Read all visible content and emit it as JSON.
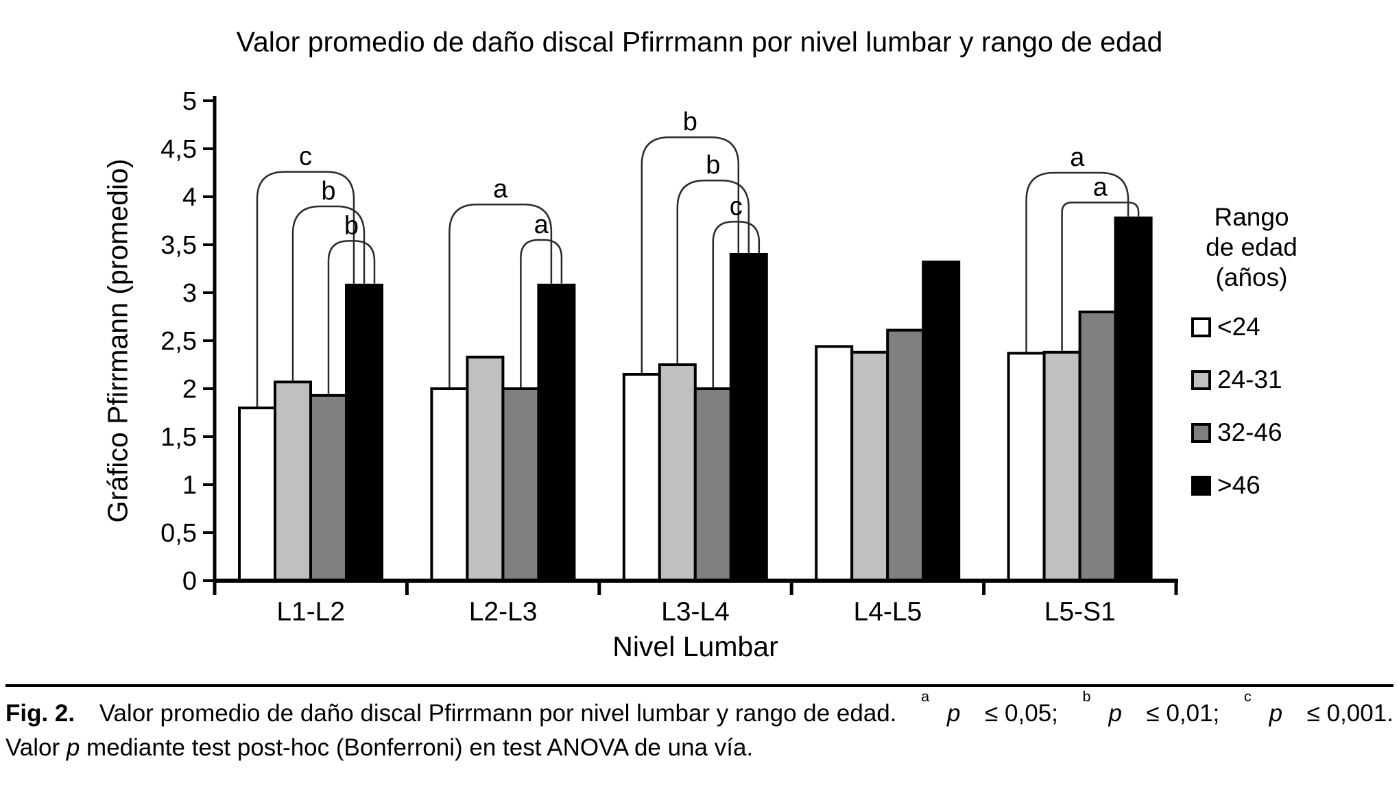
{
  "figure": {
    "caption_line1_plain": "Fig. 2. Valor promedio de daño discal Pfirrmann por nivel lumbar y rango de edad. ap ≤ 0,05; bp ≤ 0,01; cp ≤ 0,001.",
    "caption_line2_plain": "Valor p mediante test post-hoc (Bonferroni) en test ANOVA de una vía.",
    "caption_line1_segments": [
      {
        "t": "Fig. 2.",
        "b": true
      },
      {
        "t": " Valor promedio de daño discal Pfirrmann por nivel lumbar y rango de edad. "
      },
      {
        "t": "a",
        "sup": true
      },
      {
        "t": "p",
        "i": true
      },
      {
        "t": " ≤ 0,05; "
      },
      {
        "t": "b",
        "sup": true
      },
      {
        "t": "p",
        "i": true
      },
      {
        "t": " ≤ 0,01; "
      },
      {
        "t": "c",
        "sup": true
      },
      {
        "t": "p",
        "i": true
      },
      {
        "t": " ≤ 0,001."
      }
    ],
    "caption_line2_segments": [
      {
        "t": "Valor "
      },
      {
        "t": "p",
        "i": true
      },
      {
        "t": " mediante test post-hoc (Bonferroni) en test ANOVA de una vía."
      }
    ]
  },
  "chart_data": {
    "type": "bar",
    "title": "Valor promedio de daño discal Pfirrmann por nivel lumbar y rango de edad",
    "xlabel": "Nivel Lumbar",
    "ylabel": "Gráfico Pfirrmann (promedio)",
    "categories": [
      "L1-L2",
      "L2-L3",
      "L3-L4",
      "L4-L5",
      "L5-S1"
    ],
    "series": [
      {
        "name": "<24",
        "color": "#ffffff",
        "values": [
          1.8,
          2.0,
          2.15,
          2.44,
          2.37
        ]
      },
      {
        "name": "24-31",
        "color": "#c0c0c0",
        "values": [
          2.07,
          2.33,
          2.25,
          2.38,
          2.38
        ]
      },
      {
        "name": "32-46",
        "color": "#7f7f7f",
        "values": [
          1.93,
          2.0,
          2.0,
          2.61,
          2.8
        ]
      },
      {
        "name": ">46",
        "color": "#000000",
        "values": [
          3.08,
          3.08,
          3.4,
          3.32,
          3.78
        ]
      }
    ],
    "ylim": [
      0,
      5
    ],
    "ytick_step": 0.5,
    "ytick_labels": [
      "0",
      "0,5",
      "1",
      "1,5",
      "2",
      "2,5",
      "3",
      "3,5",
      "4",
      "4,5",
      "5"
    ],
    "grid": false,
    "legend_position": "right",
    "legend_title_lines": [
      "Rango",
      "de edad",
      "(años)"
    ],
    "significance_brackets": [
      {
        "group": "L1-L2",
        "from": "<24",
        "to": ">46",
        "label": "c",
        "height": 4.26
      },
      {
        "group": "L1-L2",
        "from": "24-31",
        "to": ">46",
        "label": "b",
        "height": 3.9
      },
      {
        "group": "L1-L2",
        "from": "32-46",
        "to": ">46",
        "label": "b",
        "height": 3.54
      },
      {
        "group": "L2-L3",
        "from": "<24",
        "to": ">46",
        "label": "a",
        "height": 3.92
      },
      {
        "group": "L2-L3",
        "from": "32-46",
        "to": ">46",
        "label": "a",
        "height": 3.55
      },
      {
        "group": "L3-L4",
        "from": "<24",
        "to": ">46",
        "label": "b",
        "height": 4.62
      },
      {
        "group": "L3-L4",
        "from": "24-31",
        "to": ">46",
        "label": "b",
        "height": 4.17
      },
      {
        "group": "L3-L4",
        "from": "32-46",
        "to": ">46",
        "label": "c",
        "height": 3.74
      },
      {
        "group": "L5-S1",
        "from": "<24",
        "to": ">46",
        "label": "a",
        "height": 4.25
      },
      {
        "group": "L5-S1",
        "from": "24-31",
        "to": ">46",
        "label": "a",
        "height": 3.94
      }
    ],
    "significance_note": {
      "a": "p ≤ 0,05",
      "b": "p ≤ 0,01",
      "c": "p ≤ 0,001"
    }
  }
}
